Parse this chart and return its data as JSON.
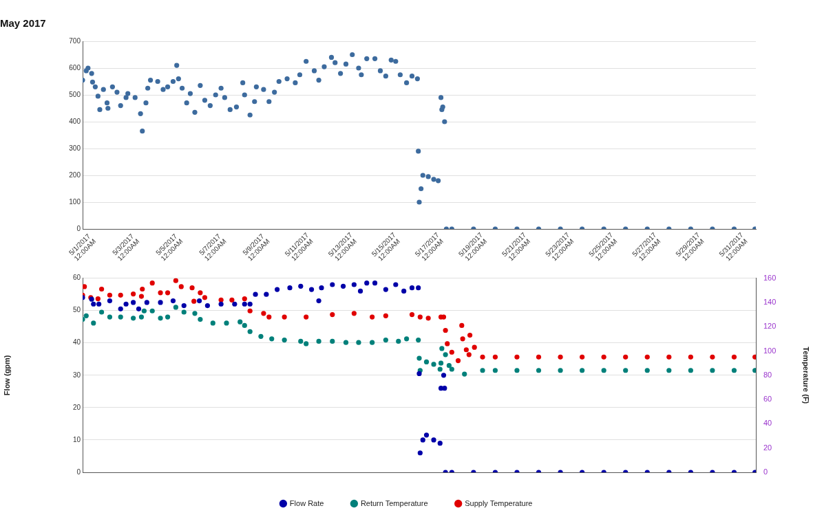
{
  "chart_data": [
    {
      "type": "scatter",
      "title": "May 2017",
      "color": "#3d6b9e",
      "marker": "circle",
      "grid": "y",
      "xlim": [
        "2017-05-01",
        "2017-06-01"
      ],
      "xticks": [
        {
          "value": "2017-05-01",
          "label": "5/1/2017 12:00AM"
        },
        {
          "value": "2017-05-03",
          "label": "5/3/2017 12:00AM"
        },
        {
          "value": "2017-05-05",
          "label": "5/5/2017 12:00AM"
        },
        {
          "value": "2017-05-07",
          "label": "5/7/2017 12:00AM"
        },
        {
          "value": "2017-05-09",
          "label": "5/9/2017 12:00AM"
        },
        {
          "value": "2017-05-11",
          "label": "5/11/2017 12:00AM"
        },
        {
          "value": "2017-05-13",
          "label": "5/13/2017 12:00AM"
        },
        {
          "value": "2017-05-15",
          "label": "5/15/2017 12:00AM"
        },
        {
          "value": "2017-05-17",
          "label": "5/17/2017 12:00AM"
        },
        {
          "value": "2017-05-19",
          "label": "5/19/2017 12:00AM"
        },
        {
          "value": "2017-05-21",
          "label": "5/21/2017 12:00AM"
        },
        {
          "value": "2017-05-23",
          "label": "5/23/2017 12:00AM"
        },
        {
          "value": "2017-05-25",
          "label": "5/25/2017 12:00AM"
        },
        {
          "value": "2017-05-27",
          "label": "5/27/2017 12:00AM"
        },
        {
          "value": "2017-05-29",
          "label": "5/29/2017 12:00AM"
        },
        {
          "value": "2017-05-31",
          "label": "5/31/2017 12:00AM"
        }
      ],
      "ylim": [
        0,
        700
      ],
      "yticks": [
        0,
        100,
        200,
        300,
        400,
        500,
        600,
        700
      ],
      "x": [
        "2017-05-01T00:00",
        "2017-05-01T04:00",
        "2017-05-01T06:00",
        "2017-05-01T10:00",
        "2017-05-01T11:00",
        "2017-05-01T14:00",
        "2017-05-01T17:00",
        "2017-05-01T19:00",
        "2017-05-01T23:00",
        "2017-05-02T03:00",
        "2017-05-02T04:00",
        "2017-05-02T09:00",
        "2017-05-02T14:00",
        "2017-05-02T18:00",
        "2017-05-03T00:00",
        "2017-05-03T02:00",
        "2017-05-03T10:00",
        "2017-05-03T16:00",
        "2017-05-03T18:00",
        "2017-05-03T22:00",
        "2017-05-04T00:00",
        "2017-05-04T03:00",
        "2017-05-04T11:00",
        "2017-05-04T17:00",
        "2017-05-04T22:00",
        "2017-05-05T04:00",
        "2017-05-05T08:00",
        "2017-05-05T10:00",
        "2017-05-05T14:00",
        "2017-05-05T19:00",
        "2017-05-05T23:00",
        "2017-05-06T04:00",
        "2017-05-06T10:00",
        "2017-05-06T15:00",
        "2017-05-06T21:00",
        "2017-05-07T03:00",
        "2017-05-07T09:00",
        "2017-05-07T13:00",
        "2017-05-07T19:00",
        "2017-05-08T02:00",
        "2017-05-08T09:00",
        "2017-05-08T11:00",
        "2017-05-08T17:00",
        "2017-05-08T22:00",
        "2017-05-09T00:00",
        "2017-05-09T08:00",
        "2017-05-09T14:00",
        "2017-05-09T20:00",
        "2017-05-10T01:00",
        "2017-05-10T10:00",
        "2017-05-10T19:00",
        "2017-05-11T00:00",
        "2017-05-11T07:00",
        "2017-05-11T16:00",
        "2017-05-11T21:00",
        "2017-05-12T03:00",
        "2017-05-12T11:00",
        "2017-05-12T15:00",
        "2017-05-12T21:00",
        "2017-05-13T03:00",
        "2017-05-13T10:00",
        "2017-05-13T17:00",
        "2017-05-13T20:00",
        "2017-05-14T02:00",
        "2017-05-14T11:00",
        "2017-05-14T17:00",
        "2017-05-14T23:00",
        "2017-05-15T05:00",
        "2017-05-15T10:00",
        "2017-05-15T15:00",
        "2017-05-15T22:00",
        "2017-05-16T04:00",
        "2017-05-16T10:00",
        "2017-05-16T11:00",
        "2017-05-16T12:00",
        "2017-05-16T14:00",
        "2017-05-16T16:00",
        "2017-05-16T22:00",
        "2017-05-17T04:00",
        "2017-05-17T09:00",
        "2017-05-17T12:00",
        "2017-05-17T13:00",
        "2017-05-17T14:00",
        "2017-05-17T16:00",
        "2017-05-17T18:00",
        "2017-05-18T00:00",
        "2017-05-19T00:00",
        "2017-05-20T00:00",
        "2017-05-21T00:00",
        "2017-05-22T00:00",
        "2017-05-23T00:00",
        "2017-05-24T00:00",
        "2017-05-25T00:00",
        "2017-05-26T00:00",
        "2017-05-27T00:00",
        "2017-05-28T00:00",
        "2017-05-29T00:00",
        "2017-05-30T00:00",
        "2017-05-31T00:00",
        "2017-05-31T23:00"
      ],
      "values": [
        555,
        590,
        600,
        580,
        548,
        530,
        495,
        445,
        520,
        470,
        450,
        530,
        510,
        460,
        490,
        505,
        490,
        430,
        365,
        470,
        525,
        555,
        550,
        520,
        530,
        550,
        610,
        560,
        525,
        470,
        505,
        435,
        535,
        480,
        460,
        500,
        525,
        490,
        445,
        455,
        545,
        500,
        425,
        475,
        530,
        520,
        475,
        510,
        550,
        560,
        545,
        575,
        625,
        590,
        555,
        605,
        640,
        620,
        580,
        615,
        650,
        600,
        575,
        635,
        635,
        590,
        570,
        630,
        625,
        575,
        545,
        570,
        560,
        290,
        100,
        150,
        200,
        195,
        185,
        180,
        490,
        445,
        455,
        400,
        0,
        0,
        0,
        0,
        0,
        0,
        0,
        0,
        0,
        0,
        0,
        0,
        0,
        0,
        0,
        0
      ]
    },
    {
      "type": "scatter",
      "marker": "circle",
      "grid": "y",
      "legend": "bottom",
      "tick_labels": "y",
      "xlim": [
        "2017-05-01",
        "2017-06-01"
      ],
      "ylabel": "Flow (gpm)",
      "y2label": "Temperature (F)",
      "ylim": [
        0,
        60
      ],
      "yticks": [
        0,
        10,
        20,
        30,
        40,
        50,
        60
      ],
      "y2lim": [
        0,
        160
      ],
      "y2ticks": [
        0,
        20,
        40,
        60,
        80,
        100,
        120,
        140,
        160
      ],
      "series": [
        {
          "name": "Flow Rate",
          "color": "#0000a8",
          "x": [
            "2017-05-01T00:00",
            "2017-05-01T10:00",
            "2017-05-01T12:00",
            "2017-05-01T18:00",
            "2017-05-02T06:00",
            "2017-05-02T18:00",
            "2017-05-03T00:00",
            "2017-05-03T08:00",
            "2017-05-03T14:00",
            "2017-05-03T23:00",
            "2017-05-04T14:00",
            "2017-05-05T04:00",
            "2017-05-05T16:00",
            "2017-05-06T09:00",
            "2017-05-06T18:00",
            "2017-05-07T09:00",
            "2017-05-08T00:00",
            "2017-05-08T11:00",
            "2017-05-08T17:00",
            "2017-05-08T23:00",
            "2017-05-09T11:00",
            "2017-05-09T23:00",
            "2017-05-10T13:00",
            "2017-05-11T01:00",
            "2017-05-11T13:00",
            "2017-05-11T21:00",
            "2017-05-12T00:00",
            "2017-05-12T12:00",
            "2017-05-13T00:00",
            "2017-05-13T12:00",
            "2017-05-13T19:00",
            "2017-05-14T02:00",
            "2017-05-14T11:00",
            "2017-05-14T23:00",
            "2017-05-15T10:00",
            "2017-05-15T19:00",
            "2017-05-16T04:00",
            "2017-05-16T11:00",
            "2017-05-16T12:00",
            "2017-05-16T13:00",
            "2017-05-16T16:00",
            "2017-05-16T20:00",
            "2017-05-17T04:00",
            "2017-05-17T11:00",
            "2017-05-17T12:00",
            "2017-05-17T15:00",
            "2017-05-17T16:00",
            "2017-05-17T17:00",
            "2017-05-18T00:00",
            "2017-05-19T00:00",
            "2017-05-20T00:00",
            "2017-05-21T00:00",
            "2017-05-22T00:00",
            "2017-05-23T00:00",
            "2017-05-24T00:00",
            "2017-05-25T00:00",
            "2017-05-26T00:00",
            "2017-05-27T00:00",
            "2017-05-28T00:00",
            "2017-05-29T00:00",
            "2017-05-30T00:00",
            "2017-05-31T00:00",
            "2017-05-31T23:00"
          ],
          "values": [
            54,
            53.5,
            52,
            52,
            53,
            50.5,
            52,
            52.5,
            50.5,
            52.5,
            52.5,
            53,
            51.5,
            53,
            51.5,
            52,
            52,
            52,
            52,
            55,
            55,
            56.5,
            57,
            57.5,
            56.5,
            53,
            57,
            58,
            57.5,
            58,
            56,
            58.5,
            58.5,
            56.5,
            58,
            56,
            57,
            57,
            30.5,
            6,
            10,
            11.5,
            10,
            9,
            26,
            30,
            26,
            0,
            0,
            0,
            0,
            0,
            0,
            0,
            0,
            0,
            0,
            0,
            0,
            0,
            0,
            0,
            0
          ]
        },
        {
          "name": "Return Temperature",
          "color": "#00807a",
          "axis": "y2",
          "x": [
            "2017-05-01T00:00",
            "2017-05-01T04:00",
            "2017-05-01T12:00",
            "2017-05-01T21:00",
            "2017-05-02T06:00",
            "2017-05-02T18:00",
            "2017-05-03T08:00",
            "2017-05-03T17:00",
            "2017-05-03T20:00",
            "2017-05-04T05:00",
            "2017-05-04T14:00",
            "2017-05-04T22:00",
            "2017-05-05T07:00",
            "2017-05-05T16:00",
            "2017-05-06T04:00",
            "2017-05-06T10:00",
            "2017-05-07T00:00",
            "2017-05-07T15:00",
            "2017-05-08T06:00",
            "2017-05-08T11:00",
            "2017-05-08T17:00",
            "2017-05-09T05:00",
            "2017-05-09T17:00",
            "2017-05-10T07:00",
            "2017-05-11T01:00",
            "2017-05-11T07:00",
            "2017-05-11T21:00",
            "2017-05-12T12:00",
            "2017-05-13T03:00",
            "2017-05-13T17:00",
            "2017-05-14T08:00",
            "2017-05-14T23:00",
            "2017-05-15T13:00",
            "2017-05-15T22:00",
            "2017-05-16T11:00",
            "2017-05-16T12:00",
            "2017-05-16T13:00",
            "2017-05-16T20:00",
            "2017-05-17T04:00",
            "2017-05-17T11:00",
            "2017-05-17T12:00",
            "2017-05-17T13:00",
            "2017-05-17T17:00",
            "2017-05-17T21:00",
            "2017-05-18T00:00",
            "2017-05-18T14:00",
            "2017-05-19T10:00",
            "2017-05-20T00:00",
            "2017-05-21T00:00",
            "2017-05-22T00:00",
            "2017-05-23T00:00",
            "2017-05-24T00:00",
            "2017-05-25T00:00",
            "2017-05-26T00:00",
            "2017-05-27T00:00",
            "2017-05-28T00:00",
            "2017-05-29T00:00",
            "2017-05-30T00:00",
            "2017-05-31T00:00",
            "2017-05-31T23:00"
          ],
          "values": [
            126,
            129,
            123,
            132,
            128,
            128,
            127,
            128,
            133,
            133,
            127,
            128,
            136,
            132,
            131,
            126,
            123,
            123,
            124,
            121,
            116,
            112,
            110,
            109,
            108,
            106,
            108,
            108,
            107,
            107,
            107,
            109,
            108,
            110,
            109,
            94,
            84,
            91,
            89,
            85,
            90,
            102,
            97,
            88,
            85,
            81,
            84,
            84,
            84,
            84,
            84,
            84,
            84,
            84,
            84,
            84,
            84,
            84,
            84,
            84
          ]
        },
        {
          "name": "Supply Temperature",
          "color": "#e00000",
          "axis": "y2",
          "x": [
            "2017-05-01T00:00",
            "2017-05-01T02:00",
            "2017-05-01T09:00",
            "2017-05-01T17:00",
            "2017-05-01T21:00",
            "2017-05-02T06:00",
            "2017-05-02T18:00",
            "2017-05-03T08:00",
            "2017-05-03T17:00",
            "2017-05-03T18:00",
            "2017-05-04T05:00",
            "2017-05-04T14:00",
            "2017-05-04T22:00",
            "2017-05-05T07:00",
            "2017-05-05T13:00",
            "2017-05-06T01:00",
            "2017-05-06T03:00",
            "2017-05-06T10:00",
            "2017-05-06T15:00",
            "2017-05-07T09:00",
            "2017-05-07T21:00",
            "2017-05-08T11:00",
            "2017-05-08T17:00",
            "2017-05-09T08:00",
            "2017-05-09T14:00",
            "2017-05-10T07:00",
            "2017-05-11T07:00",
            "2017-05-12T12:00",
            "2017-05-13T12:00",
            "2017-05-14T08:00",
            "2017-05-14T23:00",
            "2017-05-16T04:00",
            "2017-05-16T13:00",
            "2017-05-16T22:00",
            "2017-05-17T12:00",
            "2017-05-17T15:00",
            "2017-05-17T17:00",
            "2017-05-17T19:00",
            "2017-05-18T00:00",
            "2017-05-18T07:00",
            "2017-05-18T11:00",
            "2017-05-18T12:00",
            "2017-05-18T16:00",
            "2017-05-18T19:00",
            "2017-05-18T20:00",
            "2017-05-19T01:00",
            "2017-05-19T10:00",
            "2017-05-20T00:00",
            "2017-05-21T00:00",
            "2017-05-22T00:00",
            "2017-05-23T00:00",
            "2017-05-24T00:00",
            "2017-05-25T00:00",
            "2017-05-26T00:00",
            "2017-05-27T00:00",
            "2017-05-28T00:00",
            "2017-05-29T00:00",
            "2017-05-30T00:00",
            "2017-05-31T00:00",
            "2017-05-31T23:00"
          ],
          "values": [
            146,
            153,
            144,
            143,
            151,
            146,
            146,
            147,
            145,
            151,
            156,
            148,
            148,
            158,
            153,
            152,
            141,
            148,
            144,
            142,
            142,
            143,
            133,
            131,
            128,
            128,
            128,
            130,
            131,
            128,
            129,
            130,
            128,
            127,
            128,
            128,
            117,
            106,
            99,
            92,
            121,
            110,
            101,
            97,
            113,
            103,
            95,
            95,
            95,
            95,
            95,
            95,
            95,
            95,
            95,
            95,
            95,
            95,
            95,
            95
          ]
        }
      ]
    }
  ]
}
